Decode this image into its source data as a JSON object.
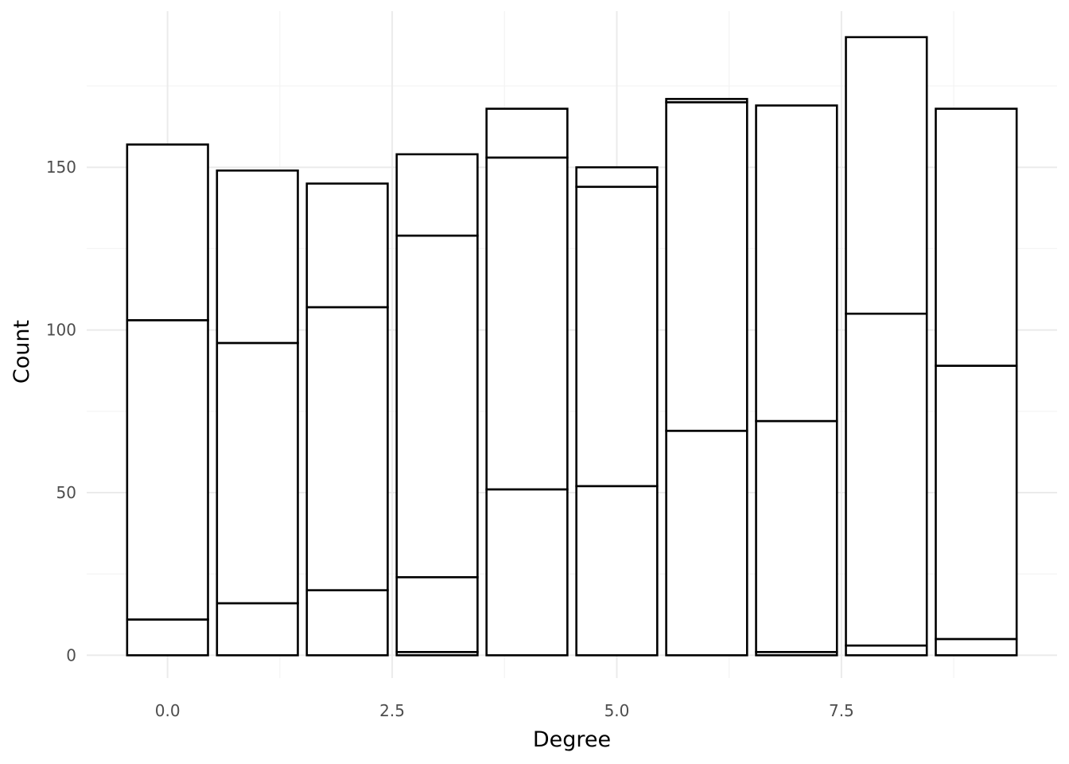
{
  "chart_data": {
    "type": "bar",
    "stacked": true,
    "title": "",
    "xlabel": "Degree",
    "ylabel": "Count",
    "x": [
      0,
      1,
      2,
      3,
      4,
      5,
      6,
      7,
      8,
      9
    ],
    "stack_boundaries": [
      [
        11,
        103,
        157
      ],
      [
        16,
        96,
        149
      ],
      [
        20,
        107,
        145
      ],
      [
        1,
        24,
        129,
        154
      ],
      [
        51,
        153,
        168
      ],
      [
        52,
        144,
        150
      ],
      [
        69,
        170,
        171
      ],
      [
        1,
        72,
        169
      ],
      [
        3,
        105,
        190
      ],
      [
        5,
        89,
        168
      ]
    ],
    "xlim": [
      -0.9,
      9.9
    ],
    "ylim": [
      -7,
      198
    ],
    "x_ticks": [
      0.0,
      2.5,
      5.0,
      7.5
    ],
    "x_tick_labels": [
      "0.0",
      "2.5",
      "5.0",
      "7.5"
    ],
    "y_ticks": [
      0,
      50,
      100,
      150
    ],
    "y_tick_labels": [
      "0",
      "50",
      "100",
      "150"
    ],
    "grid": true,
    "legend": "none",
    "colors": {
      "bar_fill": "#ffffff",
      "bar_outline": "#000000",
      "grid_major": "#ebebeb",
      "grid_minor": "#f4f4f4",
      "tick_text": "#4d4d4d",
      "axis_title_text": "#000000"
    }
  }
}
